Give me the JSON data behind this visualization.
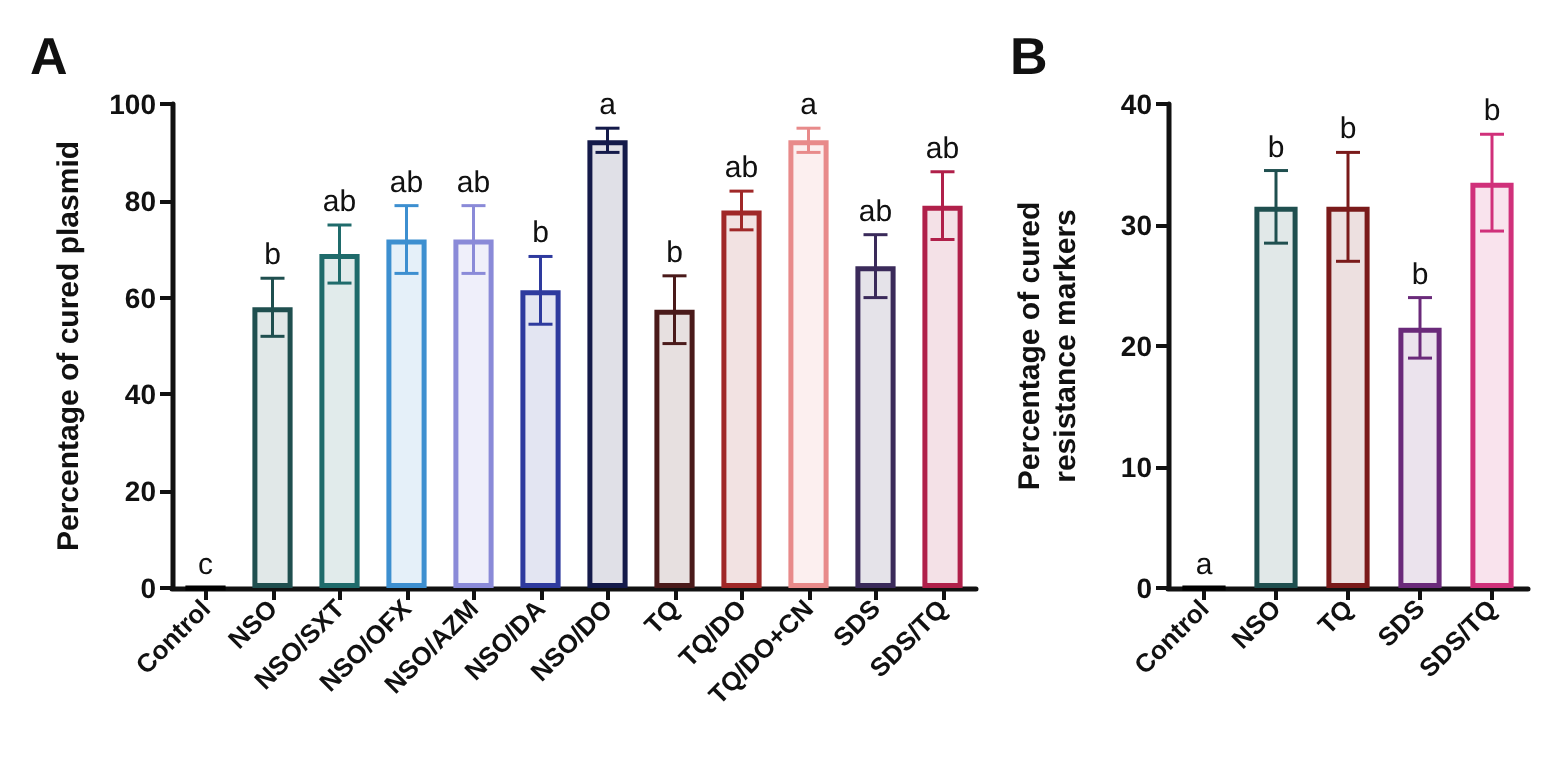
{
  "chart_data": [
    {
      "type": "bar",
      "title": "A",
      "ylabel": "Percentage of cured plasmid",
      "categories": [
        "Control",
        "NSO",
        "NSO/SXT",
        "NSO/OFX",
        "NSO/AZM",
        "NSO/DA",
        "NSO/DO",
        "TQ",
        "TQ/DO",
        "TQ/DO+CN",
        "SDS",
        "SDS/TQ"
      ],
      "values": [
        0,
        58,
        69,
        72,
        72,
        61.5,
        92.5,
        57.5,
        78,
        92.5,
        66.5,
        79
      ],
      "errors": [
        null,
        6,
        6,
        7,
        7,
        7,
        2.5,
        7,
        4,
        2.5,
        6.5,
        7
      ],
      "colors": [
        "#000000",
        "#1f4f4f",
        "#1f6b6b",
        "#3d8fd0",
        "#8a8ad8",
        "#2e3a9e",
        "#141a4a",
        "#4a1a1a",
        "#a02828",
        "#e88a8a",
        "#3a2a5a",
        "#b0204a"
      ],
      "ylim": [
        0,
        100
      ],
      "yticks": [
        0,
        20,
        40,
        60,
        80,
        100
      ],
      "grid": false,
      "annotations": [
        "c",
        "b",
        "ab",
        "ab",
        "ab",
        "b",
        "a",
        "b",
        "ab",
        "a",
        "ab",
        "ab"
      ]
    },
    {
      "type": "bar",
      "title": "B",
      "ylabel": "Percentage of cured\nresistance markers",
      "categories": [
        "Control",
        "NSO",
        "TQ",
        "SDS",
        "SDS/TQ"
      ],
      "values": [
        0,
        31.5,
        31.5,
        21.5,
        33.5
      ],
      "errors": [
        null,
        3,
        4.5,
        2.5,
        4
      ],
      "colors": [
        "#000000",
        "#1f4f4f",
        "#7a1a1a",
        "#6a2a7a",
        "#d0307a"
      ],
      "ylim": [
        0,
        40
      ],
      "yticks": [
        0,
        10,
        20,
        30,
        40
      ],
      "grid": false,
      "annotations": [
        "a",
        "b",
        "b",
        "b",
        "b"
      ]
    }
  ]
}
